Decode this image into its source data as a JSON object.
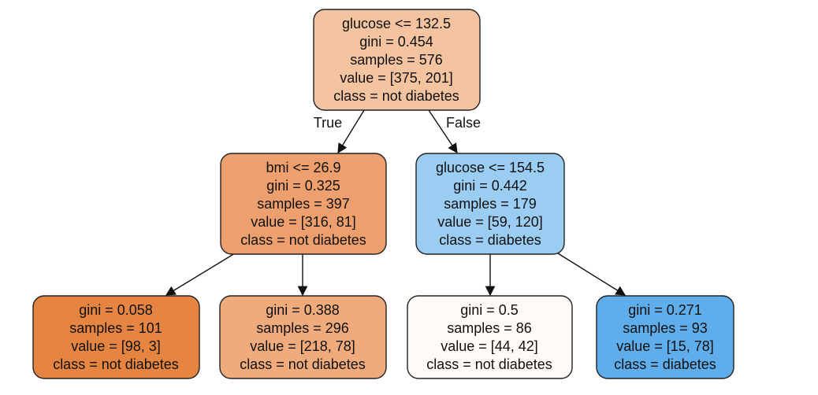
{
  "diagram": {
    "type": "decision-tree",
    "colors": {
      "root": "#f4c3a0",
      "left_internal": "#eda06d",
      "right_internal": "#9bcdf3",
      "leaf_1": "#e58541",
      "leaf_2": "#f0ab7c",
      "leaf_3": "#fefaf6",
      "leaf_4": "#5fadea",
      "stroke": "#222222"
    },
    "nodes": {
      "root": [
        "glucose <= 132.5",
        "gini = 0.454",
        "samples = 576",
        "value = [375, 201]",
        "class = not diabetes"
      ],
      "left": [
        "bmi <= 26.9",
        "gini = 0.325",
        "samples = 397",
        "value = [316, 81]",
        "class = not diabetes"
      ],
      "right": [
        "glucose <= 154.5",
        "gini = 0.442",
        "samples = 179",
        "value = [59, 120]",
        "class = diabetes"
      ],
      "leaf1": [
        "gini = 0.058",
        "samples = 101",
        "value = [98, 3]",
        "class = not diabetes"
      ],
      "leaf2": [
        "gini = 0.388",
        "samples = 296",
        "value = [218, 78]",
        "class = not diabetes"
      ],
      "leaf3": [
        "gini = 0.5",
        "samples = 86",
        "value = [44, 42]",
        "class = not diabetes"
      ],
      "leaf4": [
        "gini = 0.271",
        "samples = 93",
        "value = [15, 78]",
        "class = diabetes"
      ]
    },
    "edge_labels": {
      "true": "True",
      "false": "False"
    }
  }
}
